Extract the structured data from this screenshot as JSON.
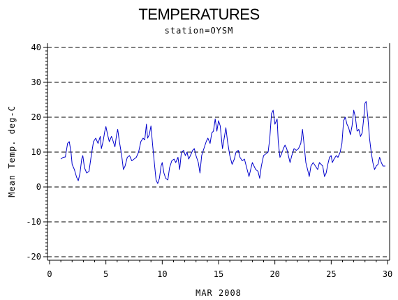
{
  "chart_data": {
    "type": "line",
    "title": "TEMPERATURES",
    "subtitle": "station=OYSM",
    "xlabel": "MAR 2008",
    "ylabel": "Mean Temp. deg-C",
    "xlim": [
      0,
      30
    ],
    "ylim": [
      -20,
      40
    ],
    "xticks": [
      0,
      5,
      10,
      15,
      20,
      25,
      30
    ],
    "yticks": [
      -20,
      -10,
      0,
      10,
      20,
      30,
      40
    ],
    "ytick_labels": [
      "-20",
      "-10",
      "0",
      "10",
      "20",
      "30",
      "40"
    ],
    "grid": "dashed horizontal at y ticks",
    "line_color": "#0000cc",
    "series": [
      {
        "points": [
          [
            1.0,
            8.0
          ],
          [
            1.2,
            8.5
          ],
          [
            1.4,
            8.6
          ],
          [
            1.6,
            12.5
          ],
          [
            1.75,
            13.0
          ],
          [
            1.9,
            10.0
          ],
          [
            2.0,
            6.5
          ],
          [
            2.2,
            5.0
          ],
          [
            2.4,
            2.8
          ],
          [
            2.55,
            1.8
          ],
          [
            2.7,
            4.0
          ],
          [
            2.85,
            8.0
          ],
          [
            2.95,
            9.0
          ],
          [
            3.1,
            5.5
          ],
          [
            3.3,
            4.0
          ],
          [
            3.5,
            4.5
          ],
          [
            3.7,
            9.0
          ],
          [
            3.9,
            13.0
          ],
          [
            4.1,
            14.0
          ],
          [
            4.3,
            12.5
          ],
          [
            4.5,
            14.5
          ],
          [
            4.6,
            11.0
          ],
          [
            4.75,
            13.0
          ],
          [
            4.9,
            16.0
          ],
          [
            5.0,
            17.3
          ],
          [
            5.15,
            15.0
          ],
          [
            5.3,
            13.0
          ],
          [
            5.5,
            14.5
          ],
          [
            5.65,
            13.0
          ],
          [
            5.8,
            11.5
          ],
          [
            5.95,
            15.0
          ],
          [
            6.05,
            16.5
          ],
          [
            6.2,
            13.0
          ],
          [
            6.4,
            9.0
          ],
          [
            6.55,
            5.0
          ],
          [
            6.7,
            6.0
          ],
          [
            6.9,
            8.5
          ],
          [
            7.1,
            9.0
          ],
          [
            7.3,
            7.5
          ],
          [
            7.5,
            8.0
          ],
          [
            7.7,
            8.5
          ],
          [
            7.9,
            10.0
          ],
          [
            8.1,
            13.0
          ],
          [
            8.3,
            14.0
          ],
          [
            8.45,
            13.5
          ],
          [
            8.6,
            18.0
          ],
          [
            8.7,
            14.0
          ],
          [
            8.85,
            15.0
          ],
          [
            9.0,
            17.5
          ],
          [
            9.15,
            12.0
          ],
          [
            9.3,
            7.0
          ],
          [
            9.45,
            2.0
          ],
          [
            9.6,
            1.0
          ],
          [
            9.75,
            2.5
          ],
          [
            9.9,
            6.0
          ],
          [
            10.0,
            7.0
          ],
          [
            10.15,
            4.0
          ],
          [
            10.3,
            2.5
          ],
          [
            10.5,
            2.0
          ],
          [
            10.65,
            5.5
          ],
          [
            10.85,
            7.5
          ],
          [
            11.05,
            8.0
          ],
          [
            11.2,
            7.0
          ],
          [
            11.4,
            8.5
          ],
          [
            11.55,
            5.0
          ],
          [
            11.7,
            10.0
          ],
          [
            11.9,
            10.5
          ],
          [
            12.05,
            9.0
          ],
          [
            12.2,
            10.0
          ],
          [
            12.35,
            8.0
          ],
          [
            12.5,
            9.0
          ],
          [
            12.7,
            10.5
          ],
          [
            12.85,
            11.0
          ],
          [
            13.0,
            9.0
          ],
          [
            13.2,
            7.0
          ],
          [
            13.35,
            4.0
          ],
          [
            13.5,
            9.0
          ],
          [
            13.7,
            11.0
          ],
          [
            13.9,
            13.0
          ],
          [
            14.05,
            14.0
          ],
          [
            14.25,
            12.5
          ],
          [
            14.4,
            15.5
          ],
          [
            14.55,
            16.0
          ],
          [
            14.7,
            19.5
          ],
          [
            14.85,
            16.0
          ],
          [
            15.0,
            19.0
          ],
          [
            15.15,
            17.5
          ],
          [
            15.35,
            11.0
          ],
          [
            15.5,
            14.0
          ],
          [
            15.65,
            17.0
          ],
          [
            15.8,
            13.0
          ],
          [
            16.0,
            9.0
          ],
          [
            16.2,
            6.5
          ],
          [
            16.4,
            8.0
          ],
          [
            16.55,
            10.0
          ],
          [
            16.75,
            10.5
          ],
          [
            16.9,
            8.5
          ],
          [
            17.1,
            7.5
          ],
          [
            17.3,
            8.0
          ],
          [
            17.5,
            5.5
          ],
          [
            17.7,
            3.0
          ],
          [
            17.85,
            5.0
          ],
          [
            18.0,
            7.0
          ],
          [
            18.15,
            6.0
          ],
          [
            18.3,
            5.0
          ],
          [
            18.5,
            4.5
          ],
          [
            18.65,
            2.5
          ],
          [
            18.8,
            6.0
          ],
          [
            19.0,
            9.0
          ],
          [
            19.2,
            9.5
          ],
          [
            19.4,
            10.0
          ],
          [
            19.55,
            14.0
          ],
          [
            19.7,
            21.0
          ],
          [
            19.85,
            22.0
          ],
          [
            20.0,
            18.0
          ],
          [
            20.2,
            19.5
          ],
          [
            20.3,
            13.0
          ],
          [
            20.45,
            8.5
          ],
          [
            20.6,
            9.5
          ],
          [
            20.75,
            11.0
          ],
          [
            20.9,
            12.0
          ],
          [
            21.05,
            11.0
          ],
          [
            21.2,
            9.0
          ],
          [
            21.35,
            7.0
          ],
          [
            21.5,
            9.0
          ],
          [
            21.7,
            11.0
          ],
          [
            21.9,
            10.5
          ],
          [
            22.1,
            11.0
          ],
          [
            22.3,
            12.5
          ],
          [
            22.45,
            16.5
          ],
          [
            22.6,
            12.0
          ],
          [
            22.75,
            7.0
          ],
          [
            22.9,
            5.0
          ],
          [
            23.05,
            3.0
          ],
          [
            23.2,
            6.0
          ],
          [
            23.4,
            7.0
          ],
          [
            23.6,
            6.0
          ],
          [
            23.8,
            5.0
          ],
          [
            23.95,
            7.0
          ],
          [
            24.1,
            6.5
          ],
          [
            24.25,
            6.0
          ],
          [
            24.4,
            3.0
          ],
          [
            24.55,
            4.0
          ],
          [
            24.7,
            6.5
          ],
          [
            24.85,
            8.5
          ],
          [
            25.0,
            9.0
          ],
          [
            25.1,
            7.0
          ],
          [
            25.25,
            8.0
          ],
          [
            25.45,
            9.0
          ],
          [
            25.6,
            8.5
          ],
          [
            25.8,
            10.0
          ],
          [
            25.95,
            12.5
          ],
          [
            26.1,
            19.0
          ],
          [
            26.25,
            20.0
          ],
          [
            26.4,
            18.0
          ],
          [
            26.55,
            17.0
          ],
          [
            26.7,
            15.0
          ],
          [
            26.85,
            17.5
          ],
          [
            27.0,
            22.0
          ],
          [
            27.15,
            20.0
          ],
          [
            27.3,
            16.0
          ],
          [
            27.45,
            16.5
          ],
          [
            27.6,
            14.5
          ],
          [
            27.75,
            15.5
          ],
          [
            27.9,
            20.0
          ],
          [
            28.0,
            24.0
          ],
          [
            28.1,
            24.5
          ],
          [
            28.25,
            20.0
          ],
          [
            28.4,
            14.0
          ],
          [
            28.55,
            10.0
          ],
          [
            28.7,
            7.0
          ],
          [
            28.85,
            5.0
          ],
          [
            29.0,
            6.0
          ],
          [
            29.15,
            6.5
          ],
          [
            29.3,
            8.5
          ],
          [
            29.45,
            7.0
          ],
          [
            29.6,
            6.0
          ],
          [
            29.8,
            6.0
          ]
        ]
      }
    ]
  }
}
